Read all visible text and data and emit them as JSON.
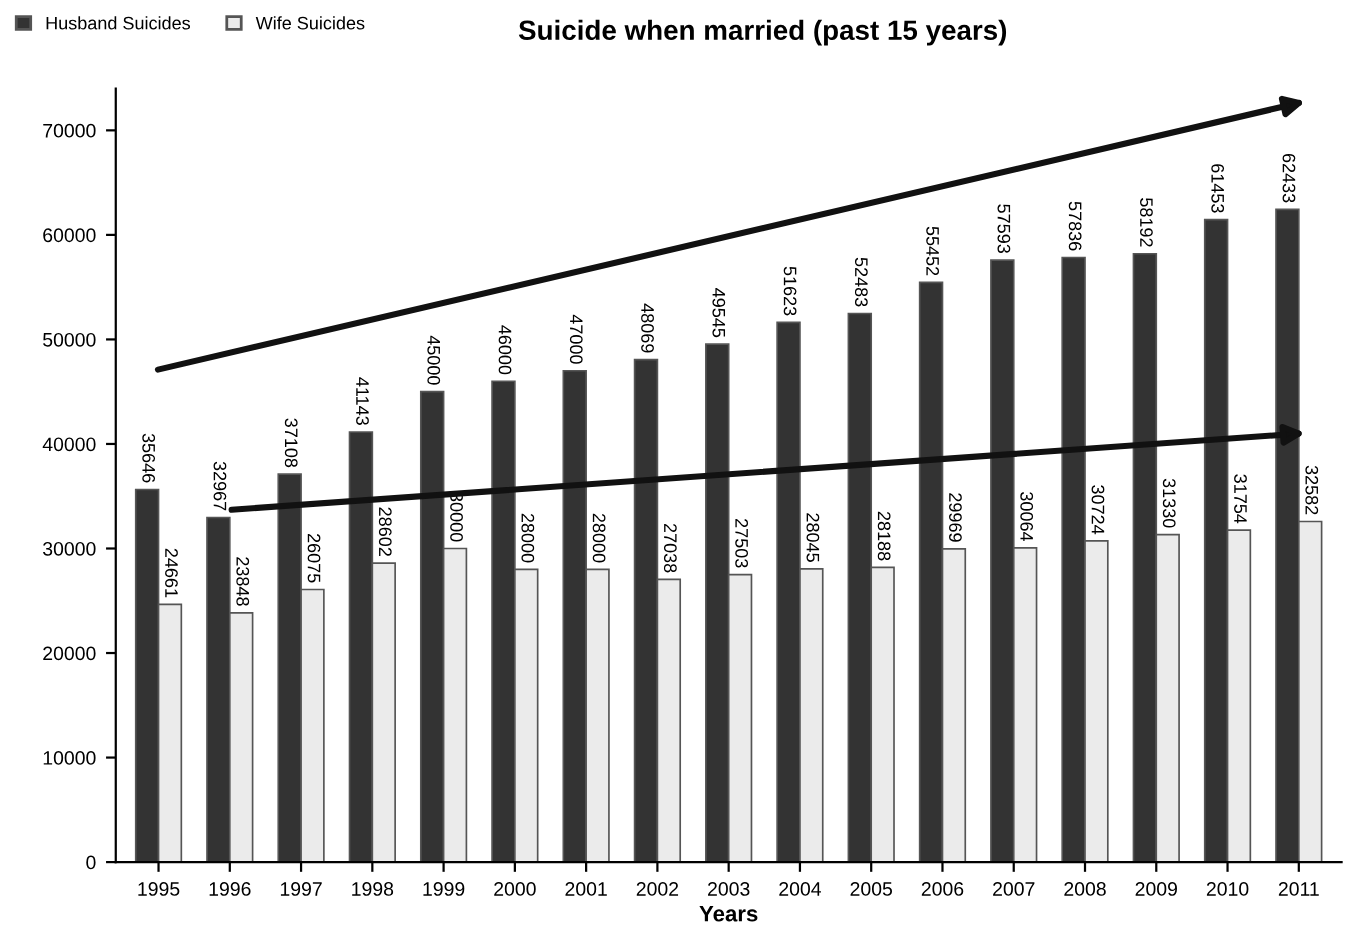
{
  "chart_data": {
    "type": "bar",
    "title": "Suicide when married (past 15 years)",
    "xlabel": "Years",
    "categories": [
      "1995",
      "1996",
      "1997",
      "1998",
      "1999",
      "2000",
      "2001",
      "2002",
      "2003",
      "2004",
      "2005",
      "2006",
      "2007",
      "2008",
      "2009",
      "2010",
      "2011"
    ],
    "series": [
      {
        "name": "Husband Suicides",
        "color": "#333333",
        "values": [
          35646,
          32967,
          37108,
          41143,
          45000,
          46000,
          47000,
          48069,
          49545,
          51623,
          52483,
          55452,
          57593,
          57836,
          58192,
          61453,
          62433
        ]
      },
      {
        "name": "Wife Suicides",
        "color": "#ebebeb",
        "values": [
          24661,
          23848,
          26075,
          28602,
          30000,
          28000,
          28000,
          27038,
          27503,
          28045,
          28188,
          29969,
          30064,
          30724,
          31330,
          31754,
          32582
        ]
      }
    ],
    "ylim": [
      0,
      74000
    ],
    "yticks": [
      0,
      10000,
      20000,
      30000,
      40000,
      50000,
      60000,
      70000
    ],
    "data_labels": true,
    "legend": "top left",
    "grid": false
  }
}
